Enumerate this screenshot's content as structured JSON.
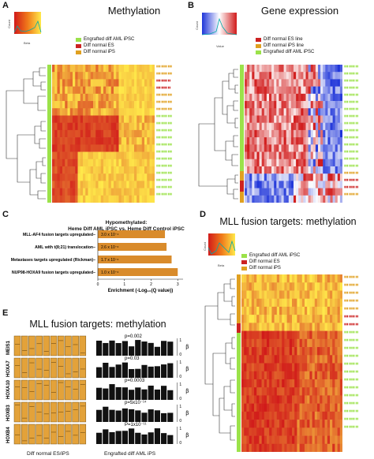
{
  "panels": {
    "A": {
      "letter": "A",
      "title": "Methylation",
      "colorkey_label": "Beta",
      "colorkey_ylabel": "Count",
      "colorkey_ticks": [
        "0",
        "0.5",
        "1"
      ],
      "legend": [
        {
          "label": "Engrafted diff AML iPSC",
          "color": "#9be24a"
        },
        {
          "label": "Diff normal ES",
          "color": "#cc2222"
        },
        {
          "label": "Diff normal iPS",
          "color": "#e0a020"
        }
      ]
    },
    "B": {
      "letter": "B",
      "title": "Gene expression",
      "colorkey_label": "Value",
      "colorkey_ylabel": "Count",
      "colorkey_ticks": [
        "-3",
        "-1",
        "0",
        "1",
        "2",
        "3"
      ],
      "legend": [
        {
          "label": "Diff normal ES line",
          "color": "#cc2222"
        },
        {
          "label": "Diff normal iPS line",
          "color": "#e0a020"
        },
        {
          "label": "Engrafted diff AML iPSC",
          "color": "#9be24a"
        }
      ]
    },
    "C": {
      "letter": "C",
      "title_line1": "Hypomethylated:",
      "title_line2": "Heme Diff AML iPSC vs. Heme Diff Control iPSC",
      "xlabel": "Enrichment (-Log₁₀(Q value))",
      "ticks": [
        "0",
        "1",
        "2",
        "3"
      ]
    },
    "D": {
      "letter": "D",
      "title": "MLL fusion targets: methylation",
      "colorkey_label": "Beta",
      "colorkey_ylabel": "Count",
      "legend": [
        {
          "label": "Engrafted diff AML iPSC",
          "color": "#9be24a"
        },
        {
          "label": "Diff normal ES",
          "color": "#cc2222"
        },
        {
          "label": "Diff normal iPS",
          "color": "#e0a020"
        }
      ]
    },
    "E": {
      "letter": "E",
      "title": "MLL fusion targets: methylation",
      "left_label": "Diff normal ES/iPS",
      "right_label": "Engrafted diff AML iPS",
      "beta_symbol": "β",
      "beta_ticks": [
        "1",
        "0"
      ],
      "genes": [
        {
          "name": "MEIS1",
          "p": "p=0.002"
        },
        {
          "name": "HOXA7",
          "p": "p=0.03"
        },
        {
          "name": "HOXA10",
          "p": "p=0.0003"
        },
        {
          "name": "HOXB3",
          "p": "p=5x10⁻¹⁴"
        },
        {
          "name": "HOXB4",
          "p": "P=1x10⁻¹¹"
        }
      ]
    }
  },
  "chart_data": {
    "type": "bar",
    "orientation": "horizontal",
    "categories": [
      "MLL-AF4 fusion targets upregulated",
      "AML with t(8;21) translocation",
      "Metastases targets upregulated (Rickman)",
      "NUP98-HOXA9 fusion targets upregulated"
    ],
    "values": [
      2.52,
      2.58,
      2.77,
      3.0
    ],
    "data_labels": [
      "3.0 x 10⁻⁴",
      "2.6 x 10⁻⁶",
      "1.7 x 10⁻⁶",
      "1.0 x 10⁻⁶"
    ],
    "title": "Hypomethylated: Heme Diff AML iPSC vs. Heme Diff Control iPSC",
    "xlabel": "Enrichment (-Log₁₀(Q value))",
    "xlim": [
      0,
      3.2
    ],
    "bar_color": "#d98b2b"
  },
  "colors": {
    "meth_red": "#d11a1a",
    "meth_yellow": "#ffe94a",
    "expr_blue": "#1f35d9",
    "expr_red": "#d11a1a",
    "aml_green": "#9be24a",
    "es_red": "#cc2222",
    "ips_orange": "#e0a020"
  }
}
